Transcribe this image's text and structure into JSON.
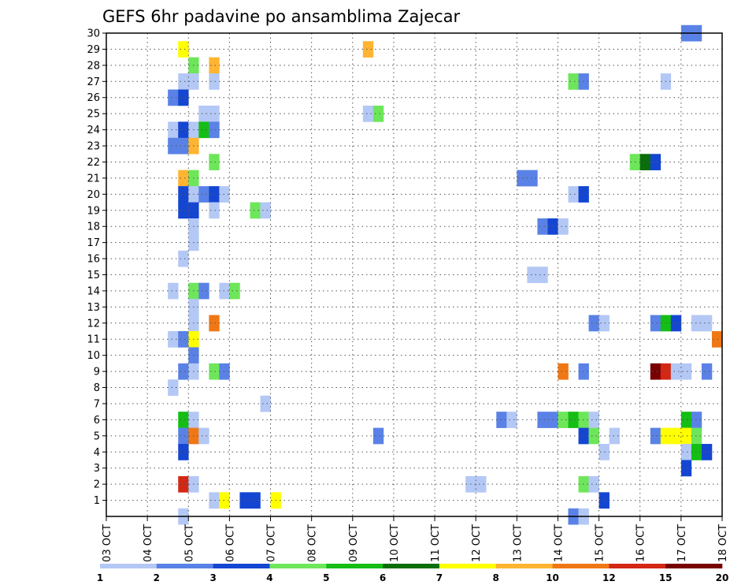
{
  "chart_data": {
    "type": "heatmap",
    "title": "GEFS 6hr padavine po ansamblima Zajecar",
    "x_tick_labels": [
      "03 OCT",
      "04 OCT",
      "05 OCT",
      "06 OCT",
      "07 OCT",
      "08 OCT",
      "09 OCT",
      "10 OCT",
      "11 OCT",
      "12 OCT",
      "13 OCT",
      "14 OCT",
      "15 OCT",
      "16 OCT",
      "17 OCT",
      "18 OCT"
    ],
    "y_tick_labels": [
      "1",
      "2",
      "3",
      "4",
      "5",
      "6",
      "7",
      "8",
      "9",
      "10",
      "11",
      "12",
      "13",
      "14",
      "15",
      "16",
      "17",
      "18",
      "19",
      "20",
      "21",
      "22",
      "23",
      "24",
      "25",
      "26",
      "27",
      "28",
      "29",
      "30"
    ],
    "x_range_days": [
      0,
      15
    ],
    "steps_per_day": 4,
    "y_range": [
      0,
      30
    ],
    "grid": true,
    "colorbar": {
      "tick_labels": [
        "1",
        "2",
        "3",
        "4",
        "5",
        "6",
        "7",
        "8",
        "10",
        "12",
        "15",
        "20"
      ],
      "colors": [
        "#b4c8f5",
        "#5a82e6",
        "#1446d2",
        "#6ee65a",
        "#14be14",
        "#0a6e0a",
        "#ffff00",
        "#ffb432",
        "#f07814",
        "#d22814",
        "#780000"
      ]
    },
    "columns_note": "cells: [member(y), 6h step index from 03 OCT 00Z, color class 0-10]",
    "cells": [
      [
        30,
        56,
        1
      ],
      [
        30,
        57,
        1
      ],
      [
        29,
        7,
        6
      ],
      [
        29,
        25,
        7
      ],
      [
        28,
        8,
        3
      ],
      [
        28,
        10,
        7
      ],
      [
        27,
        7,
        0
      ],
      [
        27,
        8,
        0
      ],
      [
        27,
        10,
        0
      ],
      [
        27,
        45,
        3
      ],
      [
        27,
        46,
        1
      ],
      [
        27,
        54,
        0
      ],
      [
        26,
        6,
        1
      ],
      [
        26,
        7,
        2
      ],
      [
        25,
        9,
        0
      ],
      [
        25,
        10,
        0
      ],
      [
        25,
        25,
        0
      ],
      [
        25,
        26,
        3
      ],
      [
        24,
        6,
        0
      ],
      [
        24,
        7,
        2
      ],
      [
        24,
        8,
        0
      ],
      [
        24,
        9,
        4
      ],
      [
        24,
        10,
        1
      ],
      [
        23,
        6,
        1
      ],
      [
        23,
        7,
        1
      ],
      [
        23,
        8,
        7
      ],
      [
        22,
        10,
        3
      ],
      [
        22,
        51,
        3
      ],
      [
        22,
        52,
        5
      ],
      [
        22,
        53,
        2
      ],
      [
        21,
        7,
        7
      ],
      [
        21,
        8,
        3
      ],
      [
        21,
        40,
        1
      ],
      [
        21,
        41,
        1
      ],
      [
        20,
        7,
        2
      ],
      [
        20,
        8,
        0
      ],
      [
        20,
        9,
        1
      ],
      [
        20,
        10,
        2
      ],
      [
        20,
        11,
        0
      ],
      [
        20,
        45,
        0
      ],
      [
        20,
        46,
        2
      ],
      [
        19,
        7,
        2
      ],
      [
        19,
        8,
        2
      ],
      [
        19,
        10,
        0
      ],
      [
        19,
        14,
        3
      ],
      [
        19,
        15,
        0
      ],
      [
        18,
        8,
        0
      ],
      [
        18,
        42,
        1
      ],
      [
        18,
        43,
        2
      ],
      [
        18,
        44,
        0
      ],
      [
        17,
        8,
        0
      ],
      [
        16,
        7,
        0
      ],
      [
        15,
        41,
        0
      ],
      [
        15,
        42,
        0
      ],
      [
        14,
        6,
        0
      ],
      [
        14,
        8,
        3
      ],
      [
        14,
        9,
        1
      ],
      [
        14,
        11,
        0
      ],
      [
        14,
        12,
        3
      ],
      [
        13,
        8,
        0
      ],
      [
        12,
        8,
        0
      ],
      [
        12,
        10,
        8
      ],
      [
        12,
        47,
        1
      ],
      [
        12,
        48,
        0
      ],
      [
        12,
        53,
        1
      ],
      [
        12,
        54,
        4
      ],
      [
        12,
        55,
        2
      ],
      [
        12,
        57,
        0
      ],
      [
        12,
        58,
        0
      ],
      [
        11,
        6,
        0
      ],
      [
        11,
        7,
        1
      ],
      [
        11,
        8,
        6
      ],
      [
        11,
        59,
        8
      ],
      [
        10,
        8,
        1
      ],
      [
        9,
        7,
        1
      ],
      [
        9,
        8,
        0
      ],
      [
        9,
        10,
        3
      ],
      [
        9,
        11,
        1
      ],
      [
        9,
        44,
        8
      ],
      [
        9,
        46,
        1
      ],
      [
        9,
        53,
        10
      ],
      [
        9,
        54,
        9
      ],
      [
        9,
        55,
        0
      ],
      [
        9,
        56,
        0
      ],
      [
        9,
        58,
        1
      ],
      [
        8,
        6,
        0
      ],
      [
        7,
        15,
        0
      ],
      [
        6,
        7,
        4
      ],
      [
        6,
        8,
        0
      ],
      [
        6,
        38,
        1
      ],
      [
        6,
        39,
        0
      ],
      [
        6,
        42,
        1
      ],
      [
        6,
        43,
        1
      ],
      [
        6,
        44,
        3
      ],
      [
        6,
        45,
        4
      ],
      [
        6,
        46,
        3
      ],
      [
        6,
        47,
        0
      ],
      [
        6,
        56,
        4
      ],
      [
        6,
        57,
        1
      ],
      [
        5,
        7,
        1
      ],
      [
        5,
        8,
        8
      ],
      [
        5,
        9,
        0
      ],
      [
        5,
        26,
        1
      ],
      [
        5,
        46,
        2
      ],
      [
        5,
        47,
        3
      ],
      [
        5,
        49,
        0
      ],
      [
        5,
        53,
        1
      ],
      [
        5,
        54,
        6
      ],
      [
        5,
        55,
        6
      ],
      [
        5,
        56,
        6
      ],
      [
        5,
        57,
        3
      ],
      [
        4,
        7,
        2
      ],
      [
        4,
        48,
        0
      ],
      [
        4,
        56,
        0
      ],
      [
        4,
        57,
        4
      ],
      [
        4,
        58,
        2
      ],
      [
        3,
        56,
        2
      ],
      [
        3,
        60,
        0
      ],
      [
        2,
        7,
        9
      ],
      [
        2,
        8,
        0
      ],
      [
        2,
        35,
        0
      ],
      [
        2,
        36,
        0
      ],
      [
        2,
        46,
        3
      ],
      [
        2,
        47,
        0
      ],
      [
        1,
        10,
        0
      ],
      [
        1,
        11,
        6
      ],
      [
        1,
        13,
        2
      ],
      [
        1,
        14,
        2
      ],
      [
        1,
        16,
        6
      ],
      [
        1,
        48,
        2
      ],
      [
        0,
        7,
        0
      ],
      [
        0,
        45,
        1
      ],
      [
        0,
        46,
        0
      ]
    ]
  }
}
